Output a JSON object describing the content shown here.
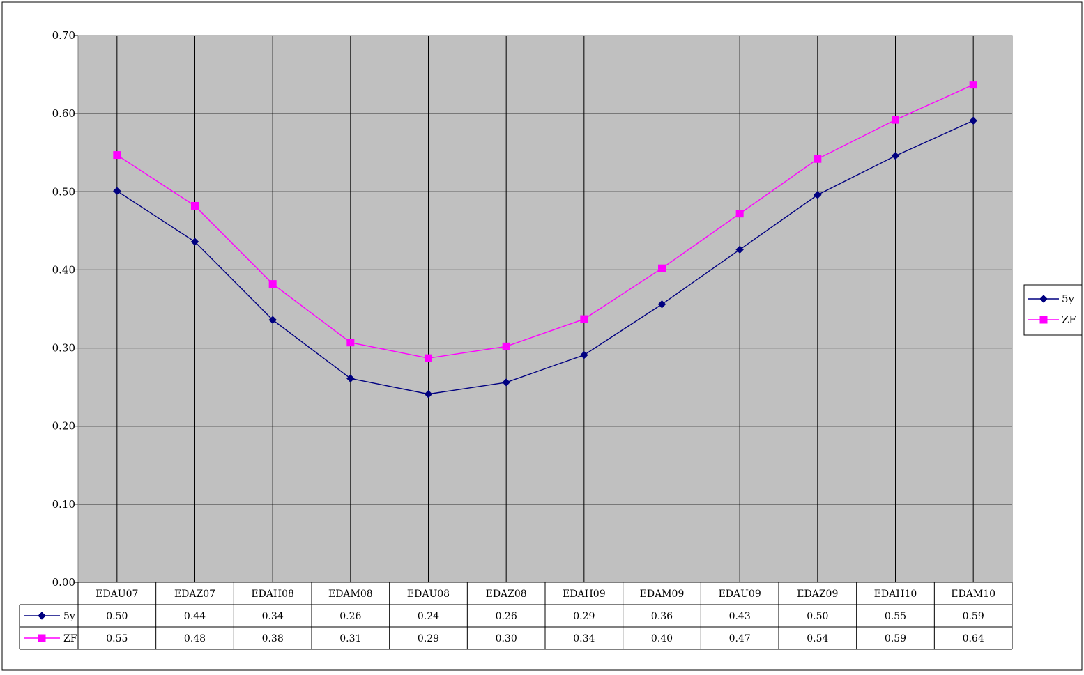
{
  "chart_data": {
    "type": "line",
    "title": "",
    "xlabel": "",
    "ylabel": "",
    "categories": [
      "EDAU07",
      "EDAZ07",
      "EDAH08",
      "EDAM08",
      "EDAU08",
      "EDAZ08",
      "EDAH09",
      "EDAM09",
      "EDAU09",
      "EDAZ09",
      "EDAH10",
      "EDAM10"
    ],
    "series": [
      {
        "name": "5y",
        "color": "#000080",
        "marker": "diamond",
        "values": [
          0.501,
          0.436,
          0.336,
          0.261,
          0.241,
          0.256,
          0.291,
          0.356,
          0.426,
          0.496,
          0.546,
          0.591
        ],
        "labels": [
          "0.50",
          "0.44",
          "0.34",
          "0.26",
          "0.24",
          "0.26",
          "0.29",
          "0.36",
          "0.43",
          "0.50",
          "0.55",
          "0.59"
        ]
      },
      {
        "name": "ZF",
        "color": "#ff00ff",
        "marker": "square",
        "values": [
          0.547,
          0.482,
          0.382,
          0.307,
          0.287,
          0.302,
          0.337,
          0.402,
          0.472,
          0.542,
          0.592,
          0.637
        ],
        "labels": [
          "0.55",
          "0.48",
          "0.38",
          "0.31",
          "0.29",
          "0.30",
          "0.34",
          "0.40",
          "0.47",
          "0.54",
          "0.59",
          "0.64"
        ]
      }
    ],
    "ylim": [
      0,
      0.7
    ],
    "yticks": [
      "0.00",
      "0.10",
      "0.20",
      "0.30",
      "0.40",
      "0.50",
      "0.60",
      "0.70"
    ],
    "grid": true,
    "legend": "right",
    "data_table": true,
    "plot_background": "#c0c0c0"
  }
}
